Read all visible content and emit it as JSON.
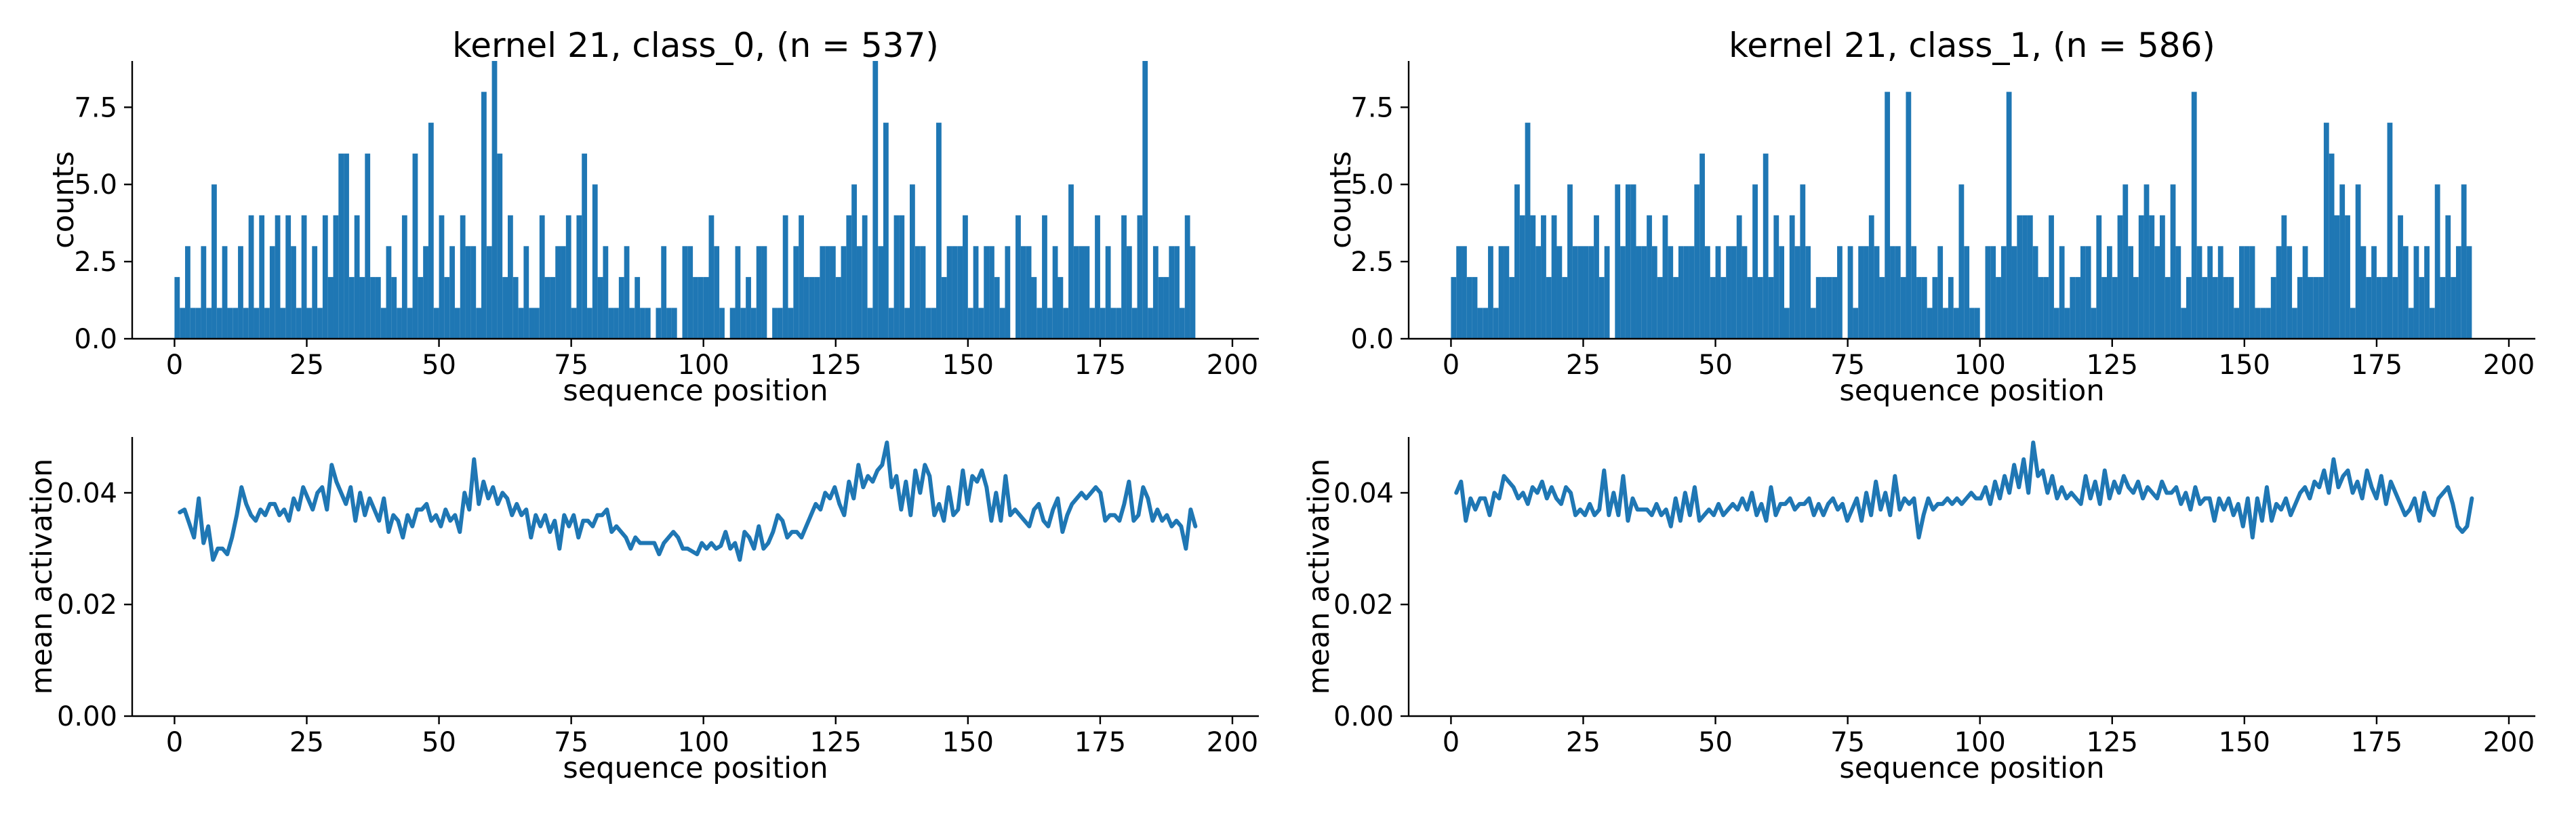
{
  "chart_data": [
    {
      "id": "hist0",
      "type": "bar",
      "title": "kernel 21, class_0, (n = 537)",
      "xlabel": "sequence position",
      "ylabel": "counts",
      "xlim": [
        -8,
        205
      ],
      "ylim": [
        0,
        9
      ],
      "xticks": [
        0,
        25,
        50,
        75,
        100,
        125,
        150,
        175,
        200
      ],
      "yticks": [
        0.0,
        2.5,
        5.0,
        7.5
      ],
      "xtick_labels": [
        "0",
        "25",
        "50",
        "75",
        "100",
        "125",
        "150",
        "175",
        "200"
      ],
      "ytick_labels": [
        "0.0",
        "2.5",
        "5.0",
        "7.5"
      ],
      "color": "#1f77b4",
      "x": [
        0,
        1,
        2,
        3,
        4,
        5,
        6,
        7,
        8,
        9,
        10,
        11,
        12,
        13,
        14,
        15,
        16,
        17,
        18,
        19,
        20,
        21,
        22,
        23,
        24,
        25,
        26,
        27,
        28,
        29,
        30,
        31,
        32,
        33,
        34,
        35,
        36,
        37,
        38,
        39,
        40,
        41,
        42,
        43,
        44,
        45,
        46,
        47,
        48,
        49,
        50,
        51,
        52,
        53,
        54,
        55,
        56,
        57,
        58,
        59,
        60,
        61,
        62,
        63,
        64,
        65,
        66,
        67,
        68,
        69,
        70,
        71,
        72,
        73,
        74,
        75,
        76,
        77,
        78,
        79,
        80,
        81,
        82,
        83,
        84,
        85,
        86,
        87,
        88,
        89,
        90,
        91,
        92,
        93,
        94,
        95,
        96,
        97,
        98,
        99,
        100,
        101,
        102,
        103,
        104,
        105,
        106,
        107,
        108,
        109,
        110,
        111,
        112,
        113,
        114,
        115,
        116,
        117,
        118,
        119,
        120,
        121,
        122,
        123,
        124,
        125,
        126,
        127,
        128,
        129,
        130,
        131,
        132,
        133,
        134,
        135,
        136,
        137,
        138,
        139,
        140,
        141,
        142,
        143,
        144,
        145,
        146,
        147,
        148,
        149,
        150,
        151,
        152,
        153,
        154,
        155,
        156,
        157,
        158,
        159,
        160,
        161,
        162,
        163,
        164,
        165,
        166,
        167,
        168,
        169,
        170,
        171,
        172,
        173,
        174,
        175,
        176,
        177,
        178,
        179,
        180,
        181,
        182,
        183,
        184,
        185,
        186,
        187,
        188,
        189,
        190,
        191,
        192
      ],
      "values": [
        2,
        1,
        3,
        1,
        1,
        3,
        1,
        5,
        1,
        3,
        1,
        1,
        3,
        1,
        4,
        1,
        4,
        1,
        3,
        4,
        1,
        4,
        3,
        1,
        4,
        1,
        3,
        1,
        4,
        2,
        4,
        6,
        6,
        2,
        4,
        2,
        6,
        2,
        2,
        1,
        3,
        2,
        1,
        4,
        1,
        6,
        2,
        3,
        7,
        1,
        4,
        2,
        3,
        1,
        4,
        3,
        3,
        1,
        8,
        3,
        9,
        6,
        2,
        4,
        2,
        1,
        3,
        1,
        1,
        4,
        2,
        2,
        3,
        3,
        4,
        1,
        4,
        6,
        1,
        5,
        2,
        3,
        1,
        1,
        2,
        3,
        1,
        2,
        1,
        1,
        0,
        1,
        3,
        1,
        1,
        0,
        3,
        3,
        2,
        2,
        2,
        4,
        3,
        1,
        0,
        1,
        3,
        1,
        2,
        1,
        3,
        3,
        0,
        1,
        1,
        4,
        1,
        3,
        4,
        2,
        2,
        2,
        3,
        3,
        3,
        2,
        3,
        4,
        5,
        3,
        4,
        1,
        9,
        3,
        7,
        1,
        4,
        4,
        1,
        5,
        3,
        3,
        1,
        1,
        7,
        2,
        3,
        3,
        3,
        4,
        1,
        3,
        1,
        3,
        3,
        2,
        1,
        3,
        0,
        4,
        3,
        3,
        2,
        1,
        4,
        1,
        3,
        2,
        1,
        5,
        3,
        3,
        3,
        1,
        4,
        1,
        3,
        1,
        1,
        4,
        3,
        1,
        4,
        9,
        1,
        3,
        2,
        2,
        3,
        3,
        1,
        4,
        3
      ]
    },
    {
      "id": "hist1",
      "type": "bar",
      "title": "kernel 21, class_1, (n = 586)",
      "xlabel": "sequence position",
      "ylabel": "counts",
      "xlim": [
        -8,
        205
      ],
      "ylim": [
        0,
        9
      ],
      "xticks": [
        0,
        25,
        50,
        75,
        100,
        125,
        150,
        175,
        200
      ],
      "yticks": [
        0.0,
        2.5,
        5.0,
        7.5
      ],
      "xtick_labels": [
        "0",
        "25",
        "50",
        "75",
        "100",
        "125",
        "150",
        "175",
        "200"
      ],
      "ytick_labels": [
        "0.0",
        "2.5",
        "5.0",
        "7.5"
      ],
      "color": "#1f77b4",
      "x": [
        0,
        1,
        2,
        3,
        4,
        5,
        6,
        7,
        8,
        9,
        10,
        11,
        12,
        13,
        14,
        15,
        16,
        17,
        18,
        19,
        20,
        21,
        22,
        23,
        24,
        25,
        26,
        27,
        28,
        29,
        30,
        31,
        32,
        33,
        34,
        35,
        36,
        37,
        38,
        39,
        40,
        41,
        42,
        43,
        44,
        45,
        46,
        47,
        48,
        49,
        50,
        51,
        52,
        53,
        54,
        55,
        56,
        57,
        58,
        59,
        60,
        61,
        62,
        63,
        64,
        65,
        66,
        67,
        68,
        69,
        70,
        71,
        72,
        73,
        74,
        75,
        76,
        77,
        78,
        79,
        80,
        81,
        82,
        83,
        84,
        85,
        86,
        87,
        88,
        89,
        90,
        91,
        92,
        93,
        94,
        95,
        96,
        97,
        98,
        99,
        100,
        101,
        102,
        103,
        104,
        105,
        106,
        107,
        108,
        109,
        110,
        111,
        112,
        113,
        114,
        115,
        116,
        117,
        118,
        119,
        120,
        121,
        122,
        123,
        124,
        125,
        126,
        127,
        128,
        129,
        130,
        131,
        132,
        133,
        134,
        135,
        136,
        137,
        138,
        139,
        140,
        141,
        142,
        143,
        144,
        145,
        146,
        147,
        148,
        149,
        150,
        151,
        152,
        153,
        154,
        155,
        156,
        157,
        158,
        159,
        160,
        161,
        162,
        163,
        164,
        165,
        166,
        167,
        168,
        169,
        170,
        171,
        172,
        173,
        174,
        175,
        176,
        177,
        178,
        179,
        180,
        181,
        182,
        183,
        184,
        185,
        186,
        187,
        188,
        189,
        190,
        191,
        192
      ],
      "values": [
        2,
        3,
        3,
        2,
        2,
        1,
        1,
        3,
        1,
        3,
        3,
        2,
        5,
        4,
        7,
        4,
        3,
        4,
        2,
        4,
        3,
        2,
        5,
        3,
        3,
        3,
        3,
        4,
        2,
        3,
        0,
        5,
        3,
        5,
        5,
        3,
        3,
        4,
        3,
        2,
        4,
        3,
        2,
        3,
        3,
        3,
        5,
        6,
        3,
        2,
        3,
        2,
        3,
        3,
        4,
        3,
        2,
        5,
        2,
        6,
        2,
        4,
        3,
        1,
        4,
        3,
        5,
        3,
        1,
        2,
        2,
        2,
        2,
        3,
        0,
        3,
        1,
        3,
        3,
        4,
        3,
        2,
        8,
        3,
        3,
        2,
        8,
        3,
        2,
        2,
        1,
        2,
        3,
        1,
        2,
        1,
        5,
        3,
        1,
        1,
        0,
        3,
        3,
        2,
        3,
        8,
        3,
        4,
        4,
        4,
        3,
        2,
        2,
        4,
        1,
        3,
        1,
        2,
        2,
        3,
        3,
        1,
        4,
        2,
        3,
        2,
        4,
        5,
        3,
        2,
        4,
        5,
        4,
        3,
        4,
        2,
        5,
        3,
        1,
        2,
        8,
        3,
        2,
        3,
        2,
        3,
        2,
        2,
        1,
        3,
        3,
        3,
        1,
        1,
        1,
        2,
        3,
        4,
        3,
        1,
        2,
        3,
        2,
        2,
        2,
        7,
        6,
        4,
        5,
        4,
        1,
        5,
        3,
        2,
        3,
        2,
        2,
        7,
        2,
        4,
        3,
        1,
        3,
        2,
        3,
        1,
        5,
        2,
        4,
        2,
        3,
        5,
        3
      ]
    },
    {
      "id": "line0",
      "type": "line",
      "title": "",
      "xlabel": "sequence position",
      "ylabel": "mean activation",
      "xlim": [
        -8,
        205
      ],
      "ylim": [
        0.0,
        0.05
      ],
      "xticks": [
        0,
        25,
        50,
        75,
        100,
        125,
        150,
        175,
        200
      ],
      "yticks": [
        0.0,
        0.02,
        0.04
      ],
      "xtick_labels": [
        "0",
        "25",
        "50",
        "75",
        "100",
        "125",
        "150",
        "175",
        "200"
      ],
      "ytick_labels": [
        "0.00",
        "0.02",
        "0.04"
      ],
      "color": "#1f77b4",
      "x_start": 1,
      "values": [
        0.0365,
        0.037,
        0.0345,
        0.032,
        0.039,
        0.031,
        0.034,
        0.028,
        0.03,
        0.03,
        0.029,
        0.032,
        0.036,
        0.041,
        0.038,
        0.036,
        0.035,
        0.037,
        0.036,
        0.038,
        0.038,
        0.036,
        0.037,
        0.035,
        0.039,
        0.037,
        0.041,
        0.039,
        0.037,
        0.04,
        0.041,
        0.037,
        0.045,
        0.042,
        0.04,
        0.038,
        0.041,
        0.035,
        0.04,
        0.036,
        0.039,
        0.037,
        0.035,
        0.039,
        0.033,
        0.036,
        0.035,
        0.032,
        0.036,
        0.034,
        0.037,
        0.037,
        0.038,
        0.035,
        0.036,
        0.034,
        0.037,
        0.035,
        0.036,
        0.033,
        0.04,
        0.037,
        0.046,
        0.038,
        0.042,
        0.039,
        0.041,
        0.038,
        0.04,
        0.039,
        0.036,
        0.038,
        0.036,
        0.037,
        0.032,
        0.036,
        0.034,
        0.036,
        0.033,
        0.035,
        0.03,
        0.036,
        0.034,
        0.036,
        0.032,
        0.035,
        0.035,
        0.034,
        0.036,
        0.036,
        0.037,
        0.033,
        0.034,
        0.033,
        0.032,
        0.03,
        0.032,
        0.031,
        0.031,
        0.031,
        0.031,
        0.029,
        0.031,
        0.032,
        0.033,
        0.032,
        0.03,
        0.03,
        0.0295,
        0.029,
        0.031,
        0.03,
        0.031,
        0.03,
        0.0305,
        0.033,
        0.03,
        0.031,
        0.028,
        0.033,
        0.032,
        0.03,
        0.034,
        0.03,
        0.031,
        0.033,
        0.036,
        0.035,
        0.032,
        0.033,
        0.033,
        0.032,
        0.034,
        0.036,
        0.038,
        0.037,
        0.04,
        0.039,
        0.041,
        0.038,
        0.036,
        0.042,
        0.039,
        0.045,
        0.041,
        0.043,
        0.042,
        0.044,
        0.045,
        0.049,
        0.041,
        0.043,
        0.037,
        0.042,
        0.036,
        0.044,
        0.04,
        0.045,
        0.043,
        0.036,
        0.038,
        0.035,
        0.041,
        0.036,
        0.037,
        0.044,
        0.038,
        0.043,
        0.042,
        0.044,
        0.041,
        0.035,
        0.04,
        0.035,
        0.043,
        0.036,
        0.037,
        0.036,
        0.035,
        0.034,
        0.037,
        0.038,
        0.035,
        0.034,
        0.037,
        0.039,
        0.033,
        0.036,
        0.038,
        0.039,
        0.04,
        0.039,
        0.04,
        0.041,
        0.04,
        0.035,
        0.036,
        0.036,
        0.035,
        0.038,
        0.042,
        0.035,
        0.036,
        0.041,
        0.039,
        0.035,
        0.037,
        0.035,
        0.036,
        0.034,
        0.035,
        0.034,
        0.03,
        0.037,
        0.034
      ]
    },
    {
      "id": "line1",
      "type": "line",
      "title": "",
      "xlabel": "sequence position",
      "ylabel": "mean activation",
      "xlim": [
        -8,
        205
      ],
      "ylim": [
        0.0,
        0.05
      ],
      "xticks": [
        0,
        25,
        50,
        75,
        100,
        125,
        150,
        175,
        200
      ],
      "yticks": [
        0.0,
        0.02,
        0.04
      ],
      "xtick_labels": [
        "0",
        "25",
        "50",
        "75",
        "100",
        "125",
        "150",
        "175",
        "200"
      ],
      "ytick_labels": [
        "0.00",
        "0.02",
        "0.04"
      ],
      "color": "#1f77b4",
      "x_start": 1,
      "values": [
        0.04,
        0.042,
        0.035,
        0.039,
        0.037,
        0.039,
        0.039,
        0.036,
        0.04,
        0.039,
        0.043,
        0.042,
        0.041,
        0.039,
        0.04,
        0.038,
        0.041,
        0.04,
        0.042,
        0.039,
        0.041,
        0.039,
        0.038,
        0.041,
        0.04,
        0.036,
        0.037,
        0.036,
        0.038,
        0.036,
        0.037,
        0.044,
        0.036,
        0.04,
        0.036,
        0.043,
        0.035,
        0.039,
        0.037,
        0.037,
        0.037,
        0.036,
        0.038,
        0.036,
        0.037,
        0.034,
        0.039,
        0.035,
        0.04,
        0.036,
        0.041,
        0.035,
        0.036,
        0.037,
        0.036,
        0.038,
        0.036,
        0.037,
        0.038,
        0.037,
        0.039,
        0.037,
        0.04,
        0.036,
        0.038,
        0.035,
        0.041,
        0.036,
        0.038,
        0.038,
        0.039,
        0.037,
        0.038,
        0.038,
        0.039,
        0.036,
        0.038,
        0.036,
        0.038,
        0.039,
        0.037,
        0.038,
        0.035,
        0.037,
        0.039,
        0.035,
        0.04,
        0.036,
        0.042,
        0.037,
        0.04,
        0.036,
        0.043,
        0.037,
        0.039,
        0.038,
        0.039,
        0.032,
        0.036,
        0.039,
        0.037,
        0.038,
        0.038,
        0.039,
        0.038,
        0.039,
        0.038,
        0.039,
        0.04,
        0.039,
        0.039,
        0.041,
        0.038,
        0.042,
        0.039,
        0.043,
        0.04,
        0.045,
        0.041,
        0.046,
        0.04,
        0.049,
        0.043,
        0.044,
        0.04,
        0.043,
        0.039,
        0.041,
        0.039,
        0.04,
        0.039,
        0.038,
        0.043,
        0.039,
        0.042,
        0.038,
        0.044,
        0.039,
        0.042,
        0.04,
        0.043,
        0.041,
        0.04,
        0.042,
        0.039,
        0.041,
        0.04,
        0.039,
        0.042,
        0.04,
        0.04,
        0.041,
        0.038,
        0.04,
        0.037,
        0.041,
        0.038,
        0.039,
        0.039,
        0.035,
        0.039,
        0.037,
        0.039,
        0.036,
        0.038,
        0.034,
        0.039,
        0.032,
        0.039,
        0.035,
        0.041,
        0.035,
        0.038,
        0.037,
        0.039,
        0.036,
        0.038,
        0.04,
        0.041,
        0.039,
        0.042,
        0.041,
        0.044,
        0.04,
        0.046,
        0.041,
        0.043,
        0.044,
        0.04,
        0.042,
        0.039,
        0.044,
        0.041,
        0.039,
        0.043,
        0.038,
        0.042,
        0.04,
        0.038,
        0.036,
        0.037,
        0.039,
        0.035,
        0.04,
        0.037,
        0.036,
        0.039,
        0.04,
        0.041,
        0.038,
        0.034,
        0.033,
        0.034,
        0.039
      ]
    }
  ]
}
